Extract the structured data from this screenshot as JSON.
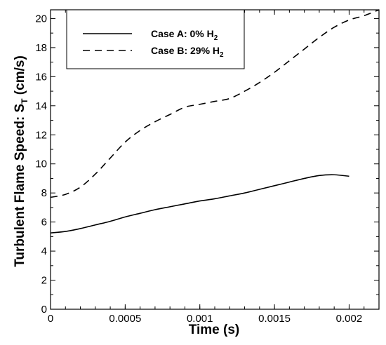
{
  "chart_data": {
    "type": "line",
    "xlabel": "Time (s)",
    "ylabel": "Turbulent Flame Speed: S",
    "ylabel_sub": "T",
    "ylabel_unit": " (cm/s)",
    "xlim": [
      0,
      0.0022
    ],
    "ylim": [
      0,
      20.6
    ],
    "x_ticks": [
      0,
      0.0005,
      0.001,
      0.0015,
      0.002
    ],
    "x_tick_labels": [
      "0",
      "0.0005",
      "0.001",
      "0.0015",
      "0.002"
    ],
    "y_ticks": [
      0,
      2,
      4,
      6,
      8,
      10,
      12,
      14,
      16,
      18,
      20
    ],
    "y_tick_labels": [
      "0",
      "2",
      "4",
      "6",
      "8",
      "10",
      "12",
      "14",
      "16",
      "18",
      "20"
    ],
    "grid": false,
    "legend_position": "top-left",
    "series": [
      {
        "name": "Case A: 0% H",
        "name_sub": "2",
        "style": "solid",
        "color": "#000000",
        "x": [
          0,
          0.0001,
          0.0002,
          0.0003,
          0.0004,
          0.0005,
          0.0006,
          0.0007,
          0.0008,
          0.0009,
          0.001,
          0.0011,
          0.0012,
          0.0013,
          0.0014,
          0.0015,
          0.0016,
          0.0017,
          0.0018,
          0.0019,
          0.002
        ],
        "y": [
          5.25,
          5.35,
          5.55,
          5.8,
          6.05,
          6.35,
          6.6,
          6.85,
          7.05,
          7.25,
          7.45,
          7.6,
          7.8,
          8.0,
          8.25,
          8.5,
          8.75,
          9.0,
          9.2,
          9.25,
          9.15
        ]
      },
      {
        "name": "Case B: 29% H",
        "name_sub": "2",
        "style": "dashed",
        "color": "#000000",
        "x": [
          0,
          0.0001,
          0.0002,
          0.0003,
          0.0004,
          0.0005,
          0.0006,
          0.0007,
          0.0008,
          0.0009,
          0.001,
          0.0011,
          0.0012,
          0.0013,
          0.0014,
          0.0015,
          0.0016,
          0.0017,
          0.0018,
          0.0019,
          0.002,
          0.0021,
          0.0022
        ],
        "y": [
          7.7,
          7.9,
          8.4,
          9.3,
          10.4,
          11.5,
          12.3,
          12.9,
          13.4,
          13.9,
          14.1,
          14.3,
          14.5,
          15.0,
          15.6,
          16.3,
          17.1,
          17.9,
          18.7,
          19.4,
          19.9,
          20.2,
          20.6
        ]
      }
    ]
  }
}
